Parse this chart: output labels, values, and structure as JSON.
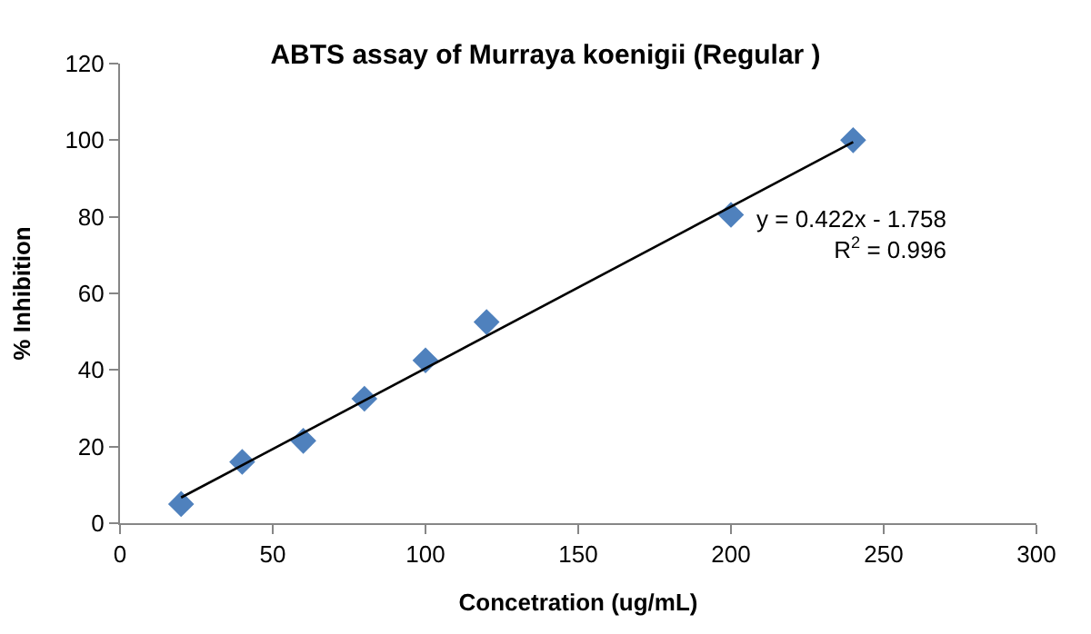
{
  "chart_data": {
    "type": "scatter",
    "title": "ABTS assay of Murraya koenigii (Regular )",
    "xlabel": "Concetration (ug/mL)",
    "ylabel": "% Inhibition",
    "series": [
      {
        "color": "#4f81bd",
        "x": [
          20,
          40,
          60,
          80,
          100,
          120,
          200,
          240
        ],
        "values": [
          5,
          16,
          21.5,
          32.5,
          42.5,
          52.5,
          80.5,
          100
        ],
        "marker": "diamond"
      },
      {
        "type": "line",
        "color": "#000000",
        "x": [
          20,
          240
        ],
        "values": [
          6.7,
          99.5
        ],
        "marker": "none",
        "line_style": "solid"
      }
    ],
    "annotations": [
      "y = 0.422x - 1.758\nR$^{2}$ = 0.996"
    ],
    "xlim": [
      0,
      300
    ],
    "xticks": [
      0,
      50,
      100,
      150,
      200,
      250,
      300
    ],
    "ylim": [
      0,
      120
    ],
    "yticks": [
      0,
      20,
      40,
      60,
      80,
      100,
      120
    ]
  }
}
